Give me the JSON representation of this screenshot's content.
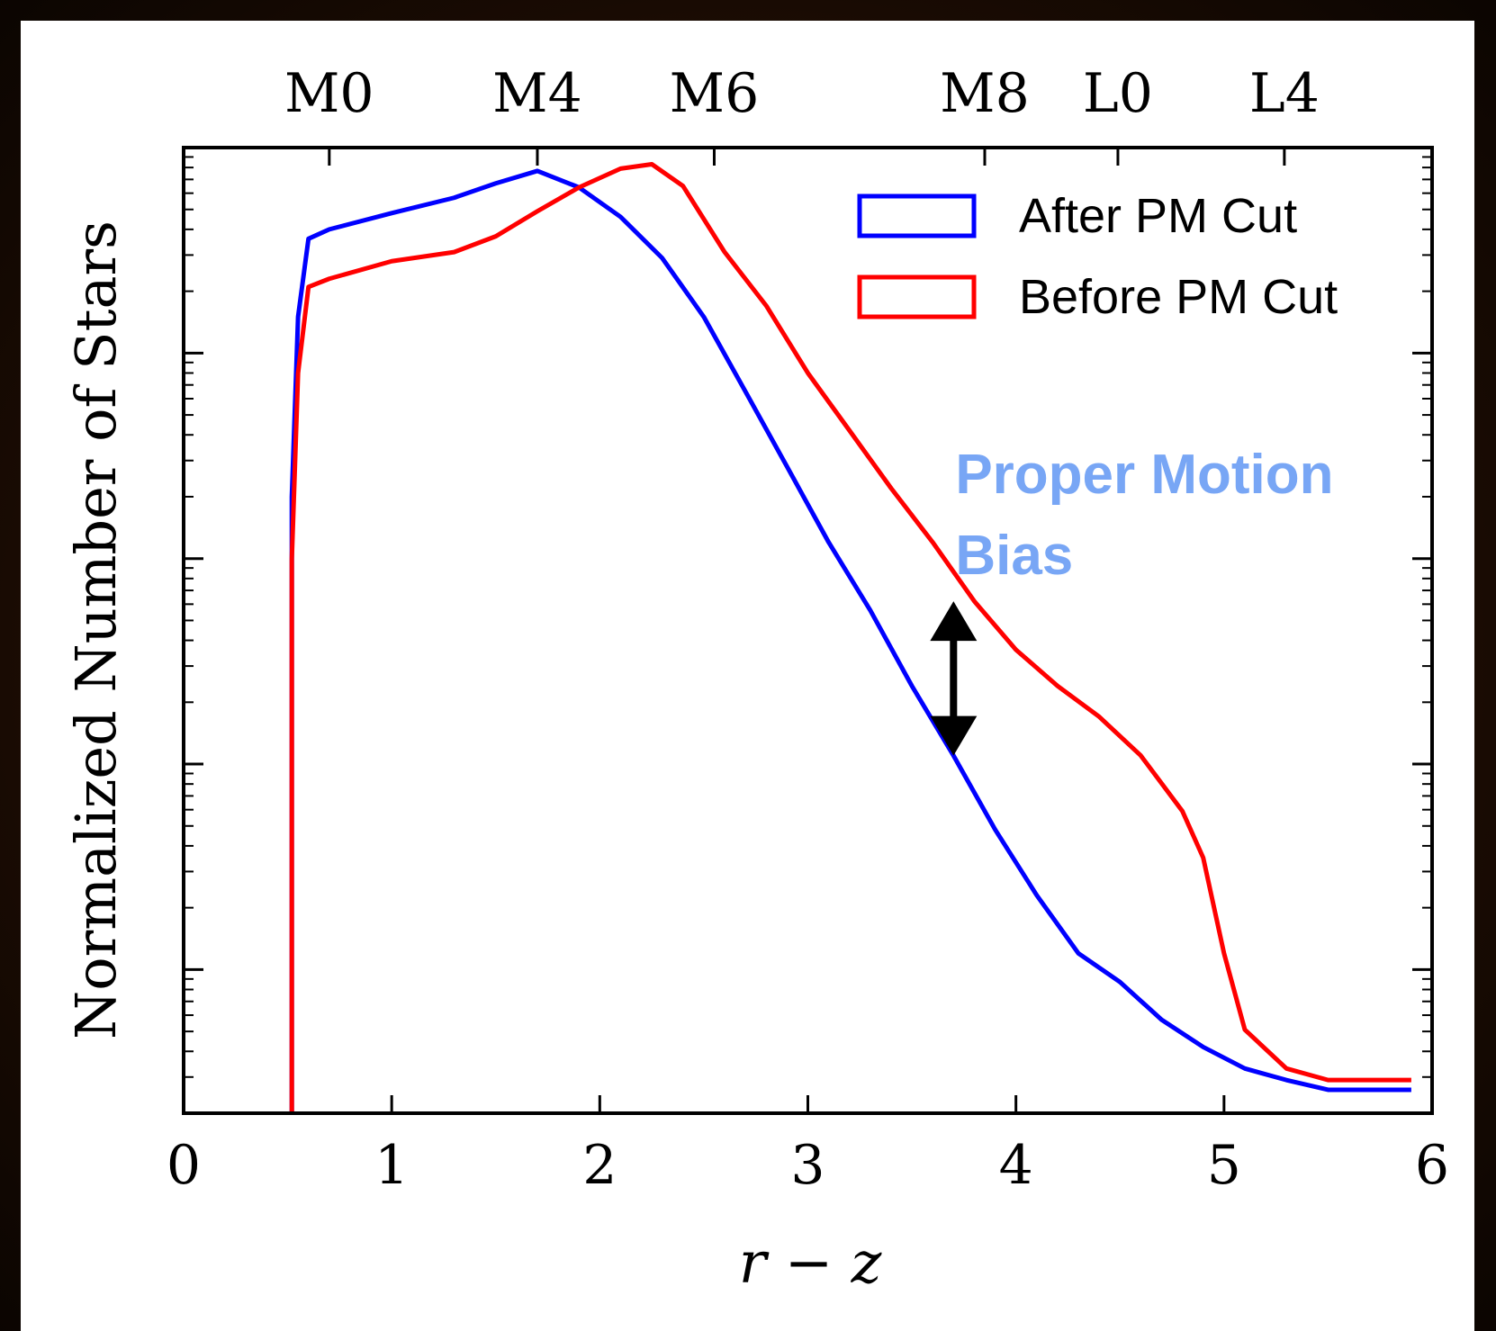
{
  "chart_data": {
    "type": "line",
    "xlabel": "r − z",
    "ylabel": "Normalized Number of Stars",
    "xlim": [
      0,
      6
    ],
    "xticks": [
      0,
      1,
      2,
      3,
      4,
      5,
      6
    ],
    "ylim": [
      2e-05,
      1
    ],
    "yticks": [
      0.0001,
      0.001,
      0.01,
      0.1
    ],
    "log_y": true,
    "top_ticks": [
      {
        "value": 0.7,
        "label": "M0"
      },
      {
        "value": 1.7,
        "label": "M4"
      },
      {
        "value": 2.55,
        "label": "M6"
      },
      {
        "value": 3.85,
        "label": "M8"
      },
      {
        "value": 4.49,
        "label": "L0"
      },
      {
        "value": 5.29,
        "label": "L4"
      }
    ],
    "legend": "upper right",
    "series": [
      {
        "name": "After PM Cut",
        "color": "#0000ff",
        "x": [
          0.52,
          0.55,
          0.6,
          0.7,
          1.0,
          1.3,
          1.5,
          1.7,
          1.9,
          2.1,
          2.3,
          2.5,
          2.7,
          2.9,
          3.1,
          3.3,
          3.5,
          3.7,
          3.9,
          4.1,
          4.3,
          4.5,
          4.7,
          4.9,
          5.1,
          5.3,
          5.5,
          5.7,
          5.9
        ],
        "values": [
          0.02,
          0.15,
          0.36,
          0.4,
          0.48,
          0.57,
          0.67,
          0.77,
          0.64,
          0.46,
          0.29,
          0.15,
          0.065,
          0.028,
          0.012,
          0.0056,
          0.0024,
          0.0011,
          0.00048,
          0.00023,
          0.00012,
          8.7e-05,
          5.7e-05,
          4.2e-05,
          3.3e-05,
          2.9e-05,
          2.6e-05,
          2.6e-05,
          2.6e-05
        ]
      },
      {
        "name": "Before PM Cut",
        "color": "#ff0000",
        "x": [
          0.52,
          0.55,
          0.6,
          0.7,
          1.0,
          1.3,
          1.5,
          1.7,
          1.9,
          2.1,
          2.25,
          2.4,
          2.6,
          2.8,
          3.0,
          3.2,
          3.4,
          3.6,
          3.8,
          4.0,
          4.2,
          4.4,
          4.6,
          4.8,
          4.9,
          5.0,
          5.1,
          5.3,
          5.5,
          5.7,
          5.9
        ],
        "values": [
          0.01,
          0.08,
          0.21,
          0.23,
          0.28,
          0.31,
          0.37,
          0.49,
          0.64,
          0.79,
          0.83,
          0.65,
          0.31,
          0.17,
          0.08,
          0.042,
          0.022,
          0.012,
          0.0062,
          0.0036,
          0.0024,
          0.0017,
          0.0011,
          0.00059,
          0.00035,
          0.00012,
          5.1e-05,
          3.3e-05,
          2.9e-05,
          2.9e-05,
          2.9e-05
        ]
      }
    ],
    "annotation": {
      "text": [
        "Proper Motion",
        "Bias"
      ],
      "color": "#78a6f5",
      "x": 3.7,
      "from": 0.0062,
      "to": 0.0011
    }
  }
}
